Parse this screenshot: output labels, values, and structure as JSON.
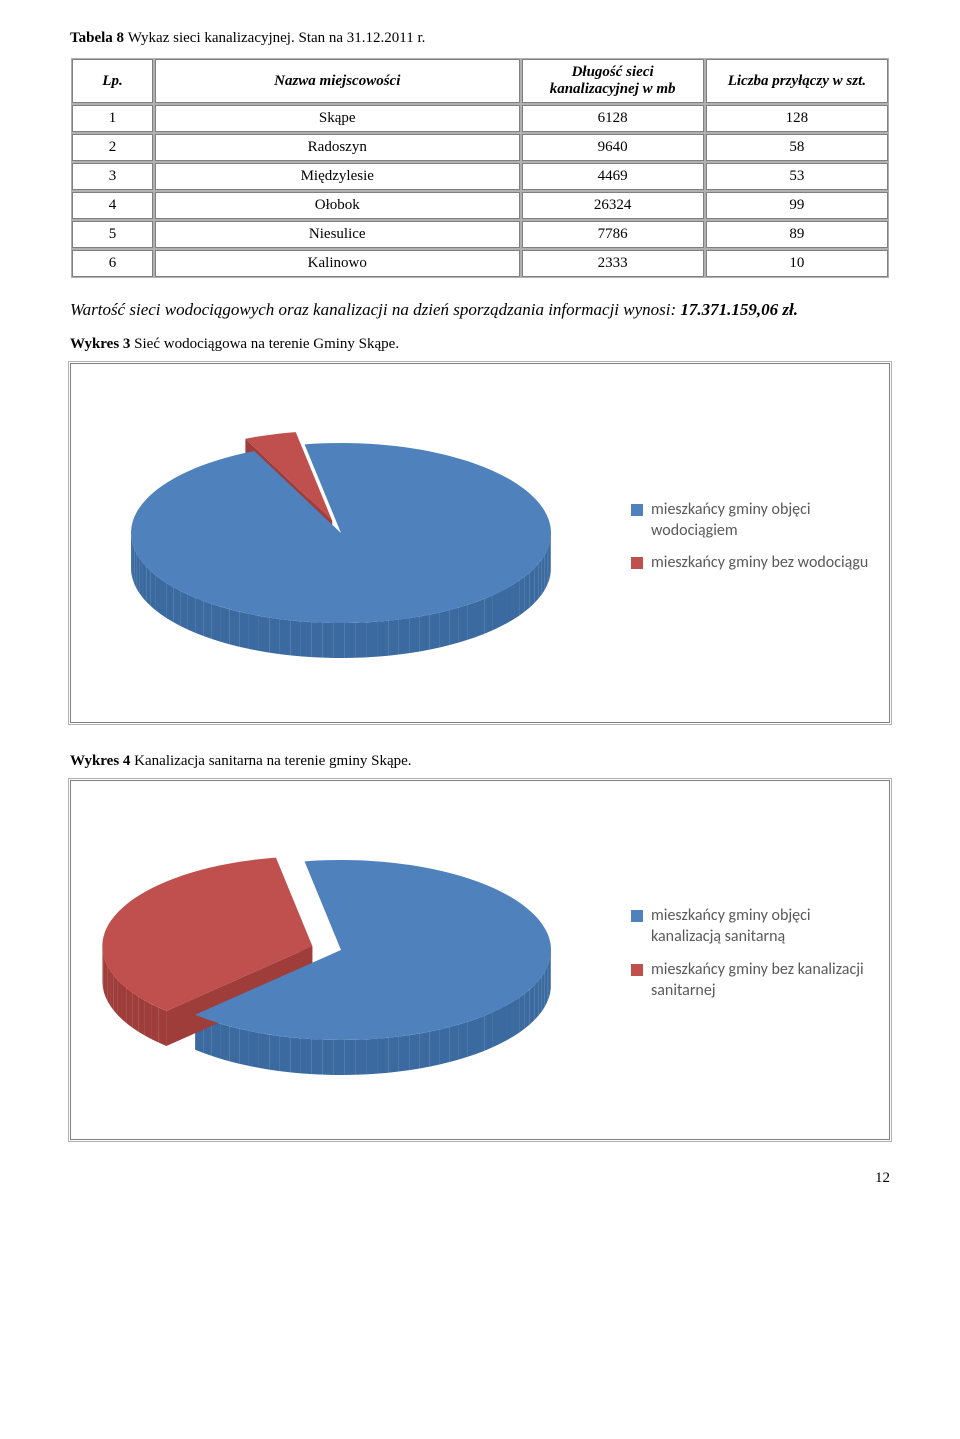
{
  "table_caption": {
    "bold_prefix": "Tabela 8 ",
    "rest": "Wykaz sieci kanalizacyjnej. Stan na 31.12.2011 r."
  },
  "table": {
    "headers": [
      "Lp.",
      "Nazwa miejscowości",
      "Długość sieci kanalizacyjnej w mb",
      "Liczba przyłączy w szt."
    ],
    "rows": [
      [
        "1",
        "Skąpe",
        "6128",
        "128"
      ],
      [
        "2",
        "Radoszyn",
        "9640",
        "58"
      ],
      [
        "3",
        "Międzylesie",
        "4469",
        "53"
      ],
      [
        "4",
        "Ołobok",
        "26324",
        "99"
      ],
      [
        "5",
        "Niesulice",
        "7786",
        "89"
      ],
      [
        "6",
        "Kalinowo",
        "2333",
        "10"
      ]
    ]
  },
  "body_text": "Wartość sieci wodociągowych oraz kanalizacji na dzień sporządzania informacji wynosi: ",
  "body_text_bold": "17.371.159,06 zł.",
  "chart3": {
    "caption_bold": "Wykres 3",
    "caption_rest": " Sieć wodociągowa na terenie Gminy Skąpe.",
    "type": "pie-3d",
    "series": [
      {
        "label": "mieszkańcy gminy objęci wodociągiem",
        "value": 96,
        "color": "#4f81bd",
        "side_color": "#3a6aa0"
      },
      {
        "label": "mieszkańcy gminy bez wodociągu",
        "value": 4,
        "color": "#c0504d",
        "side_color": "#9e3d3a"
      }
    ],
    "pulled_index": 1,
    "background_color": "#ffffff"
  },
  "chart4": {
    "caption_bold": "Wykres 4",
    "caption_rest": " Kanalizacja sanitarna na terenie gminy Skąpe.",
    "type": "pie-3d",
    "series": [
      {
        "label": "mieszkańcy gminy objęci kanalizacją sanitarną",
        "value": 65,
        "color": "#4f81bd",
        "side_color": "#3a6aa0"
      },
      {
        "label": "mieszkańcy gminy bez kanalizacji sanitarnej",
        "value": 35,
        "color": "#c0504d",
        "side_color": "#9e3d3a"
      }
    ],
    "pulled_index": 1,
    "background_color": "#ffffff"
  },
  "page_number": "12"
}
